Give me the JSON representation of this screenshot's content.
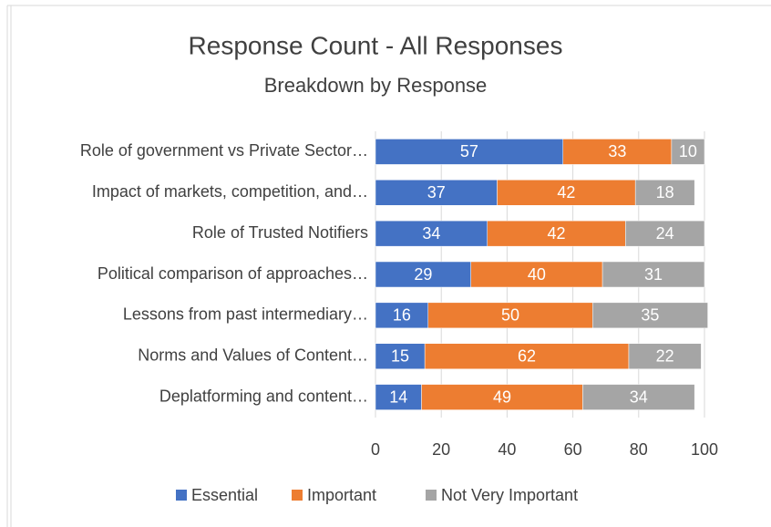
{
  "chart_data": {
    "type": "stacked_bar_horizontal",
    "title": "Response Count - All Responses",
    "subtitle": "Breakdown by Response",
    "categories": [
      "Role of government vs Private Sector…",
      "Impact of markets, competition, and…",
      "Role of Trusted Notifiers",
      "Political comparison of approaches…",
      "Lessons from past intermediary…",
      "Norms and Values of Content…",
      "Deplatforming and content…"
    ],
    "series": [
      {
        "name": "Essential",
        "color": "#4472c4",
        "values": [
          57,
          37,
          34,
          29,
          16,
          15,
          14
        ]
      },
      {
        "name": "Important",
        "color": "#ed7d31",
        "values": [
          33,
          42,
          42,
          40,
          50,
          62,
          49
        ]
      },
      {
        "name": "Not Very Important",
        "color": "#a5a5a5",
        "values": [
          10,
          18,
          24,
          31,
          35,
          22,
          34
        ]
      }
    ],
    "xlim": [
      0,
      100
    ],
    "xticks": [
      0,
      20,
      40,
      60,
      80,
      100
    ],
    "grid": true,
    "legend": "bottom"
  }
}
